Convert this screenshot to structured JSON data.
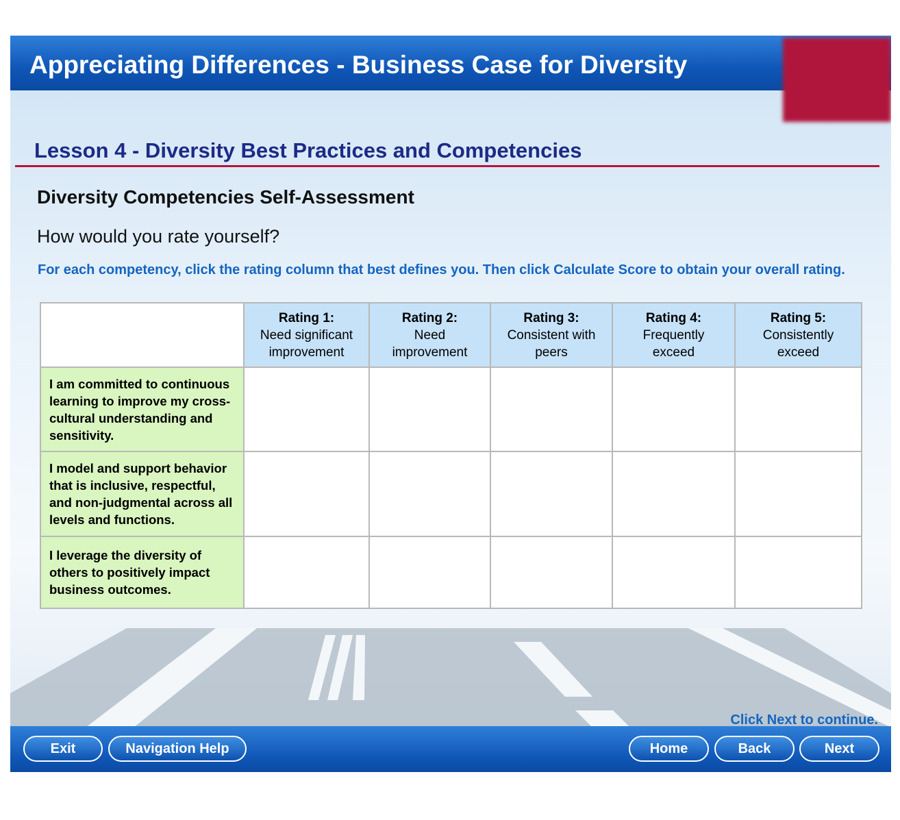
{
  "header": {
    "title": "Appreciating Differences - Business Case for Diversity"
  },
  "lesson": {
    "title": "Lesson 4 - Diversity Best Practices and Competencies"
  },
  "heading": "Diversity Competencies Self-Assessment",
  "question": "How would you rate yourself?",
  "instructions": "For each competency, click the rating column that best defines you. Then click Calculate Score to obtain your overall rating.",
  "table": {
    "columns": [
      {
        "label": "Rating 1:",
        "description": "Need significant improvement"
      },
      {
        "label": "Rating 2:",
        "description": "Need improvement"
      },
      {
        "label": "Rating 3:",
        "description": "Consistent with peers"
      },
      {
        "label": "Rating 4:",
        "description": "Frequently exceed"
      },
      {
        "label": "Rating 5:",
        "description": "Consistently exceed"
      }
    ],
    "rows": [
      "I am committed to continuous learning to improve my cross-cultural understanding and sensitivity.",
      "I model and support behavior that is inclusive, respectful, and non-judgmental across all levels and functions.",
      "I leverage the diversity of others to positively impact business outcomes."
    ]
  },
  "footer": {
    "hint": "Click Next to continue.",
    "buttons": [
      "Exit",
      "Navigation Help",
      "Home",
      "Back",
      "Next"
    ]
  }
}
